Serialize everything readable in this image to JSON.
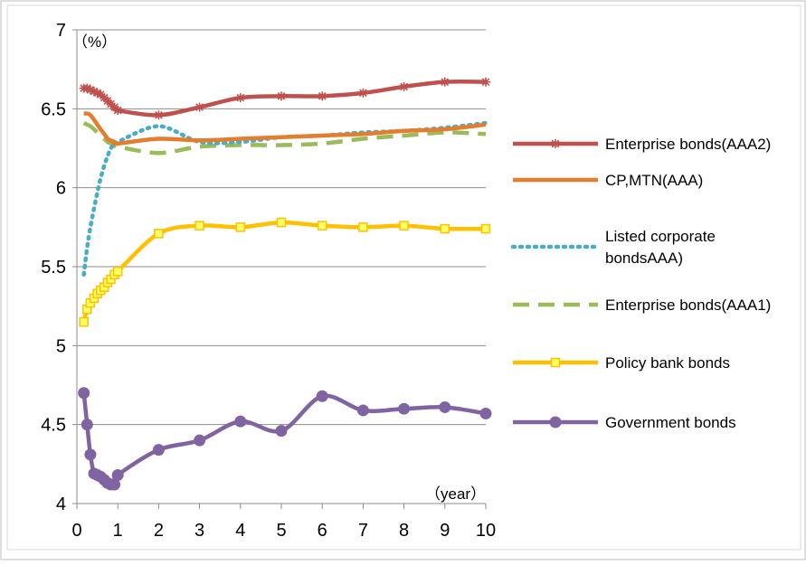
{
  "chart_data": {
    "type": "line",
    "title": "",
    "xlabel": "",
    "ylabel": "",
    "y_unit_label": "（%）",
    "x_unit_label": "（year）",
    "xlim": [
      0,
      10
    ],
    "ylim": [
      4,
      7
    ],
    "x_ticks": [
      "0",
      "1",
      "2",
      "3",
      "4",
      "5",
      "6",
      "7",
      "8",
      "9",
      "10"
    ],
    "y_ticks": [
      "4",
      "4.5",
      "5",
      "5.5",
      "6",
      "6.5",
      "7"
    ],
    "grid": "horizontal",
    "legend_position": "right",
    "series": [
      {
        "name": "Enterprise bonds(AAA2)",
        "color": "#c0504d",
        "line_style": "solid",
        "marker": "asterisk",
        "x": [
          0.17,
          0.25,
          0.33,
          0.42,
          0.5,
          0.58,
          0.67,
          0.75,
          0.83,
          0.92,
          1,
          2,
          3,
          4,
          5,
          6,
          7,
          8,
          9,
          10
        ],
        "y": [
          6.63,
          6.63,
          6.62,
          6.61,
          6.6,
          6.59,
          6.57,
          6.55,
          6.53,
          6.51,
          6.49,
          6.46,
          6.51,
          6.57,
          6.58,
          6.58,
          6.6,
          6.64,
          6.67,
          6.67
        ]
      },
      {
        "name": "CP,MTN(AAA)",
        "color": "#e47d2e",
        "line_style": "solid",
        "marker": "none",
        "x": [
          0.17,
          0.25,
          0.33,
          0.42,
          0.5,
          0.58,
          0.67,
          0.75,
          0.83,
          0.92,
          1,
          2,
          3,
          4,
          5,
          6,
          7,
          8,
          9,
          10
        ],
        "y": [
          6.47,
          6.47,
          6.46,
          6.43,
          6.4,
          6.37,
          6.34,
          6.31,
          6.3,
          6.29,
          6.28,
          6.31,
          6.3,
          6.31,
          6.32,
          6.33,
          6.34,
          6.36,
          6.37,
          6.4
        ]
      },
      {
        "name": "Listed corporate bondsAAA)",
        "legend_lines": [
          "Listed corporate",
          "bondsAAA)"
        ],
        "color": "#4bacc6",
        "line_style": "dotted",
        "marker": "none",
        "x": [
          0.17,
          0.25,
          0.33,
          0.42,
          0.5,
          0.58,
          0.67,
          0.75,
          0.83,
          0.92,
          1,
          2,
          3,
          4,
          5,
          6,
          7,
          8,
          9,
          10
        ],
        "y": [
          5.45,
          5.62,
          5.75,
          5.87,
          5.97,
          6.06,
          6.14,
          6.2,
          6.25,
          6.28,
          6.29,
          6.39,
          6.29,
          6.29,
          6.32,
          6.33,
          6.35,
          6.36,
          6.38,
          6.41
        ]
      },
      {
        "name": "Enterprise bonds(AAA1)",
        "color": "#9bbb59",
        "line_style": "dashed",
        "marker": "none",
        "x": [
          0.17,
          0.25,
          0.33,
          0.42,
          0.5,
          0.58,
          0.67,
          0.75,
          0.83,
          0.92,
          1,
          2,
          3,
          4,
          5,
          6,
          7,
          8,
          9,
          10
        ],
        "y": [
          6.41,
          6.4,
          6.39,
          6.37,
          6.35,
          6.33,
          6.31,
          6.29,
          6.28,
          6.27,
          6.26,
          6.22,
          6.26,
          6.27,
          6.27,
          6.28,
          6.31,
          6.33,
          6.35,
          6.34
        ]
      },
      {
        "name": "Policy bank bonds",
        "color": "#ffc000",
        "line_style": "solid",
        "marker": "square",
        "x": [
          0.17,
          0.25,
          0.33,
          0.42,
          0.5,
          0.58,
          0.67,
          0.75,
          0.83,
          0.92,
          1,
          2,
          3,
          4,
          5,
          6,
          7,
          8,
          9,
          10
        ],
        "y": [
          5.15,
          5.23,
          5.27,
          5.3,
          5.33,
          5.35,
          5.37,
          5.4,
          5.42,
          5.45,
          5.47,
          5.71,
          5.76,
          5.75,
          5.78,
          5.76,
          5.75,
          5.76,
          5.74,
          5.74
        ]
      },
      {
        "name": "Government bonds",
        "color": "#8064a2",
        "line_style": "solid",
        "marker": "circle",
        "x": [
          0.17,
          0.25,
          0.33,
          0.42,
          0.5,
          0.58,
          0.67,
          0.75,
          0.83,
          0.92,
          1,
          2,
          3,
          4,
          5,
          6,
          7,
          8,
          9,
          10
        ],
        "y": [
          4.7,
          4.5,
          4.31,
          4.19,
          4.18,
          4.17,
          4.15,
          4.13,
          4.12,
          4.12,
          4.18,
          4.34,
          4.4,
          4.52,
          4.46,
          4.68,
          4.59,
          4.6,
          4.61,
          4.57
        ]
      }
    ]
  }
}
